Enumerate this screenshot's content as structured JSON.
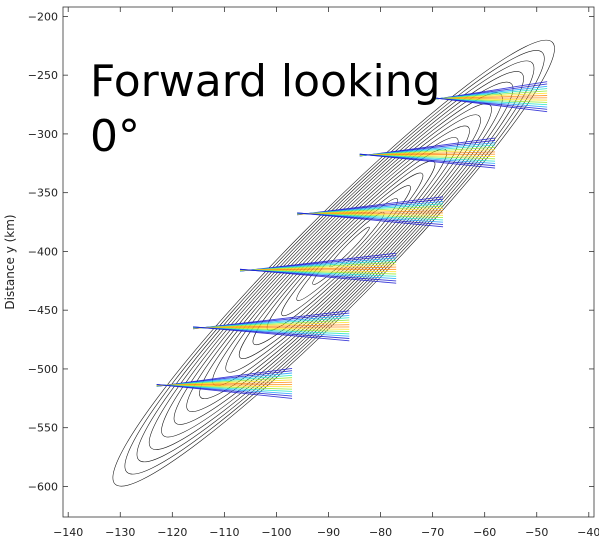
{
  "chart_data": {
    "type": "contour",
    "title": "",
    "xlabel": "",
    "ylabel": "Distance y (km)",
    "xlim": [
      -141,
      -39
    ],
    "ylim": [
      -626,
      -192
    ],
    "xticks": [
      -140,
      -130,
      -120,
      -110,
      -100,
      -90,
      -80,
      -70,
      -60,
      -50,
      -40
    ],
    "yticks": [
      -200,
      -250,
      -300,
      -350,
      -400,
      -450,
      -500,
      -550,
      -600
    ],
    "annotation_lines": [
      "Forward looking",
      "0°"
    ],
    "grid": false,
    "legend": "none",
    "colors": {
      "contour": "#1a1a1a",
      "bands_colormap": [
        "#1e1ed2",
        "#1ea0ff",
        "#23e6c8",
        "#96eb32",
        "#ffe11e",
        "#ff8c14",
        "#dc1e1e"
      ]
    },
    "ellipse": {
      "center": [
        -89,
        -410
      ],
      "semi_major_axis_end": [
        -47,
        -222
      ],
      "semi_minor_axis_end": [
        -80,
        -422
      ],
      "n_contours": 17
    },
    "bands": [
      {
        "center": [
          -59,
          -270
        ],
        "half_width_dir_end": [
          -48,
          -270
        ]
      },
      {
        "center": [
          -71,
          -318
        ],
        "half_width_dir_end": [
          -58,
          -318
        ]
      },
      {
        "center": [
          -82,
          -368
        ],
        "half_width_dir_end": [
          -68,
          -368
        ]
      },
      {
        "center": [
          -92,
          -416
        ],
        "half_width_dir_end": [
          -77,
          -416
        ]
      },
      {
        "center": [
          -101,
          -465
        ],
        "half_width_dir_end": [
          -86,
          -465
        ]
      },
      {
        "center": [
          -110,
          -514
        ],
        "half_width_dir_end": [
          -97,
          -514
        ]
      }
    ]
  }
}
